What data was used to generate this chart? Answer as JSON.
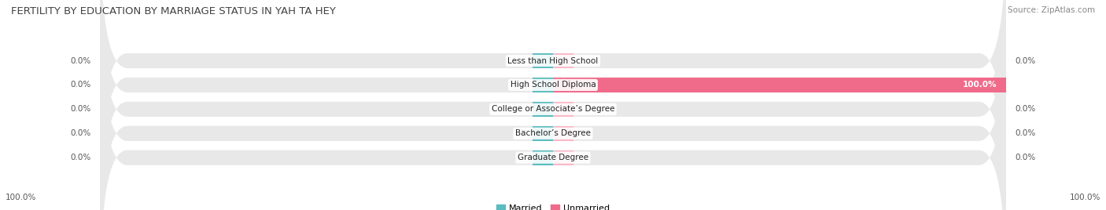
{
  "title": "FERTILITY BY EDUCATION BY MARRIAGE STATUS IN YAH TA HEY",
  "source": "Source: ZipAtlas.com",
  "categories": [
    "Less than High School",
    "High School Diploma",
    "College or Associate’s Degree",
    "Bachelor’s Degree",
    "Graduate Degree"
  ],
  "married_values": [
    0.0,
    0.0,
    0.0,
    0.0,
    0.0
  ],
  "unmarried_values": [
    0.0,
    100.0,
    0.0,
    0.0,
    0.0
  ],
  "married_color": "#5bbcbf",
  "unmarried_color": "#f06b8a",
  "unmarried_light_color": "#f9b8c8",
  "married_label": "Married",
  "unmarried_label": "Unmarried",
  "bar_height": 0.62,
  "bar_background_color": "#e8e8e8",
  "title_fontsize": 9.5,
  "source_fontsize": 7.5,
  "label_fontsize": 7.5,
  "tick_fontsize": 7.5,
  "category_fontsize": 7.5
}
